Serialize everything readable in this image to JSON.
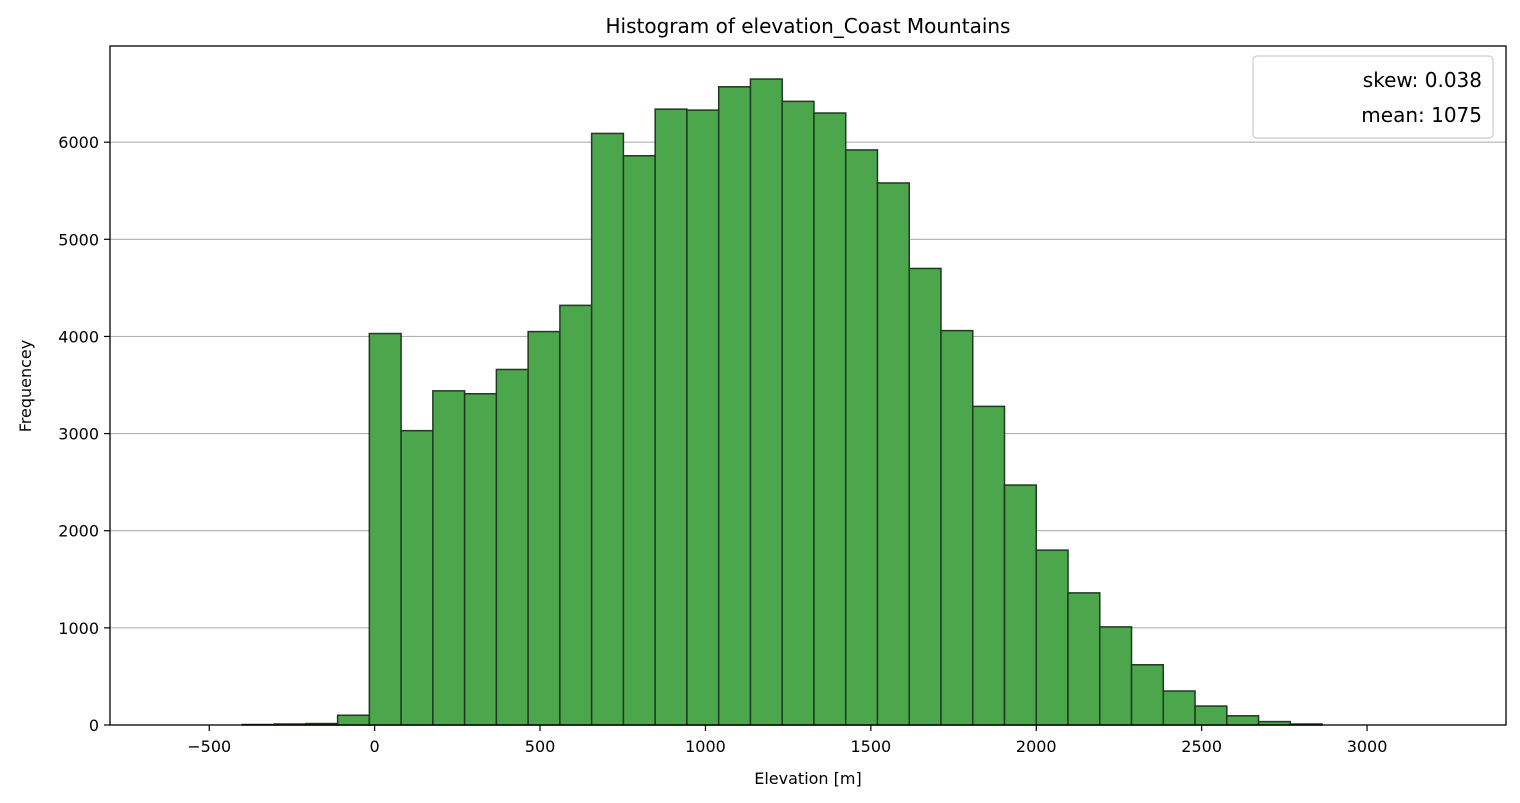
{
  "chart_data": {
    "type": "bar",
    "title": "Histogram of elevation_Coast Mountains",
    "xlabel": "Elevation [m]",
    "ylabel": "Frequencey",
    "xlim": [
      -800,
      3420
    ],
    "ylim": [
      0,
      6990
    ],
    "bin_width": 96,
    "bins": [
      {
        "x0": -400,
        "x1": -304,
        "value": 5
      },
      {
        "x0": -304,
        "x1": -208,
        "value": 10
      },
      {
        "x0": -208,
        "x1": -112,
        "value": 15
      },
      {
        "x0": -112,
        "x1": -16,
        "value": 100
      },
      {
        "x0": -16,
        "x1": 80,
        "value": 4030
      },
      {
        "x0": 80,
        "x1": 176,
        "value": 3030
      },
      {
        "x0": 176,
        "x1": 272,
        "value": 3440
      },
      {
        "x0": 272,
        "x1": 368,
        "value": 3410
      },
      {
        "x0": 368,
        "x1": 464,
        "value": 3660
      },
      {
        "x0": 464,
        "x1": 560,
        "value": 4050
      },
      {
        "x0": 560,
        "x1": 656,
        "value": 4320
      },
      {
        "x0": 656,
        "x1": 752,
        "value": 6090
      },
      {
        "x0": 752,
        "x1": 848,
        "value": 5860
      },
      {
        "x0": 848,
        "x1": 944,
        "value": 6340
      },
      {
        "x0": 944,
        "x1": 1040,
        "value": 6330
      },
      {
        "x0": 1040,
        "x1": 1136,
        "value": 6570
      },
      {
        "x0": 1136,
        "x1": 1232,
        "value": 6650
      },
      {
        "x0": 1232,
        "x1": 1328,
        "value": 6420
      },
      {
        "x0": 1328,
        "x1": 1424,
        "value": 6300
      },
      {
        "x0": 1424,
        "x1": 1520,
        "value": 5920
      },
      {
        "x0": 1520,
        "x1": 1616,
        "value": 5580
      },
      {
        "x0": 1616,
        "x1": 1712,
        "value": 4700
      },
      {
        "x0": 1712,
        "x1": 1808,
        "value": 4060
      },
      {
        "x0": 1808,
        "x1": 1904,
        "value": 3280
      },
      {
        "x0": 1904,
        "x1": 2000,
        "value": 2470
      },
      {
        "x0": 2000,
        "x1": 2096,
        "value": 1800
      },
      {
        "x0": 2096,
        "x1": 2192,
        "value": 1360
      },
      {
        "x0": 2192,
        "x1": 2288,
        "value": 1010
      },
      {
        "x0": 2288,
        "x1": 2384,
        "value": 620
      },
      {
        "x0": 2384,
        "x1": 2480,
        "value": 350
      },
      {
        "x0": 2480,
        "x1": 2576,
        "value": 195
      },
      {
        "x0": 2576,
        "x1": 2672,
        "value": 95
      },
      {
        "x0": 2672,
        "x1": 2768,
        "value": 35
      },
      {
        "x0": 2768,
        "x1": 2864,
        "value": 10
      }
    ],
    "x_ticks": [
      {
        "value": -500,
        "label": "−500"
      },
      {
        "value": 0,
        "label": "0"
      },
      {
        "value": 500,
        "label": "500"
      },
      {
        "value": 1000,
        "label": "1000"
      },
      {
        "value": 1500,
        "label": "1500"
      },
      {
        "value": 2000,
        "label": "2000"
      },
      {
        "value": 2500,
        "label": "2500"
      },
      {
        "value": 3000,
        "label": "3000"
      }
    ],
    "y_ticks": [
      {
        "value": 0,
        "label": "0"
      },
      {
        "value": 1000,
        "label": "1000"
      },
      {
        "value": 2000,
        "label": "2000"
      },
      {
        "value": 3000,
        "label": "3000"
      },
      {
        "value": 4000,
        "label": "4000"
      },
      {
        "value": 5000,
        "label": "5000"
      },
      {
        "value": 6000,
        "label": "6000"
      }
    ],
    "grid": {
      "axis": "y"
    },
    "legend": {
      "placement": "top-right",
      "entries": [
        "skew: 0.038",
        "mean: 1075"
      ]
    },
    "colors": {
      "bar_fill": "#4ca64c",
      "bar_edge": "#1f3a1f",
      "grid": "#b0b0b0",
      "axis": "#000000"
    }
  }
}
